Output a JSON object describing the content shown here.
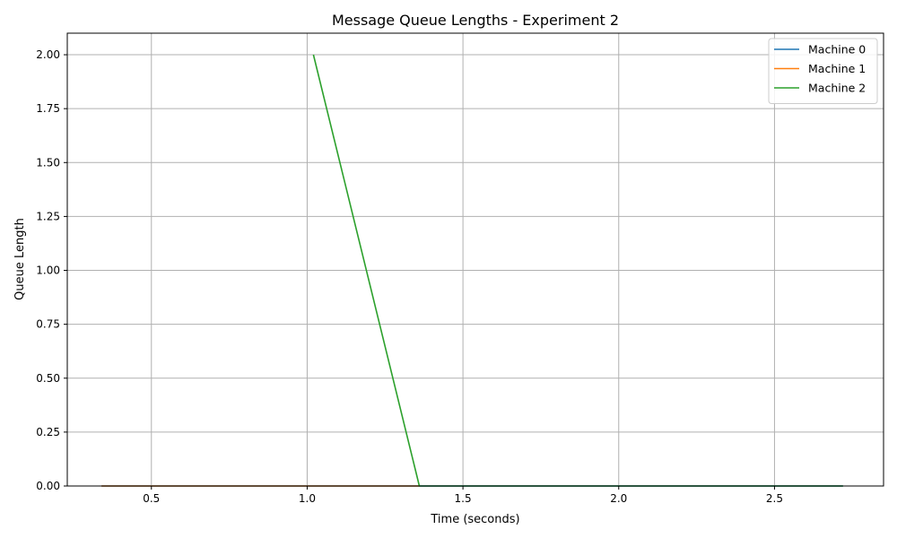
{
  "chart_data": {
    "type": "line",
    "title": "Message Queue Lengths - Experiment 2",
    "xlabel": "Time (seconds)",
    "ylabel": "Queue Length",
    "xlim": [
      0.23,
      2.85
    ],
    "ylim": [
      0,
      2.1
    ],
    "xticks": [
      0.5,
      1.0,
      1.5,
      2.0,
      2.5
    ],
    "xtick_labels": [
      "0.5",
      "1.0",
      "1.5",
      "2.0",
      "2.5"
    ],
    "yticks": [
      0,
      0.25,
      0.5,
      0.75,
      1.0,
      1.25,
      1.5,
      1.75,
      2.0
    ],
    "ytick_labels": [
      "0.00",
      "0.25",
      "0.50",
      "0.75",
      "1.00",
      "1.25",
      "1.50",
      "1.75",
      "2.00"
    ],
    "grid": true,
    "legend_position": "top-right",
    "series": [
      {
        "name": "Machine 0",
        "color": "#1f77b4",
        "x": [
          0.34,
          2.72
        ],
        "y": [
          0,
          0
        ]
      },
      {
        "name": "Machine 1",
        "color": "#ff7f0e",
        "x": [
          0.34,
          1.36
        ],
        "y": [
          0,
          0
        ]
      },
      {
        "name": "Machine 2",
        "color": "#2ca02c",
        "x": [
          1.02,
          1.36,
          2.72
        ],
        "y": [
          2,
          0,
          0
        ]
      }
    ]
  }
}
